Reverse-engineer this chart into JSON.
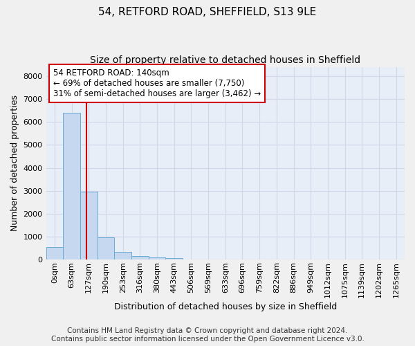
{
  "title1": "54, RETFORD ROAD, SHEFFIELD, S13 9LE",
  "title2": "Size of property relative to detached houses in Sheffield",
  "xlabel": "Distribution of detached houses by size in Sheffield",
  "ylabel": "Number of detached properties",
  "footer_line1": "Contains HM Land Registry data © Crown copyright and database right 2024.",
  "footer_line2": "Contains public sector information licensed under the Open Government Licence v3.0.",
  "bar_labels": [
    "0sqm",
    "63sqm",
    "127sqm",
    "190sqm",
    "253sqm",
    "316sqm",
    "380sqm",
    "443sqm",
    "506sqm",
    "569sqm",
    "633sqm",
    "696sqm",
    "759sqm",
    "822sqm",
    "886sqm",
    "949sqm",
    "1012sqm",
    "1075sqm",
    "1139sqm",
    "1202sqm",
    "1265sqm"
  ],
  "bar_values": [
    550,
    6400,
    2950,
    970,
    340,
    160,
    95,
    65,
    0,
    0,
    0,
    0,
    0,
    0,
    0,
    0,
    0,
    0,
    0,
    0,
    0
  ],
  "bar_color": "#c5d8ef",
  "bar_edge_color": "#6aaad4",
  "annotation_box_text": "54 RETFORD ROAD: 140sqm\n← 69% of detached houses are smaller (7,750)\n31% of semi-detached houses are larger (3,462) →",
  "vline_x": 1.85,
  "vline_color": "#cc0000",
  "box_edge_color": "#cc0000",
  "ylim": [
    0,
    8400
  ],
  "yticks": [
    0,
    1000,
    2000,
    3000,
    4000,
    5000,
    6000,
    7000,
    8000
  ],
  "bg_color": "#e8eef8",
  "grid_color": "#d0d8e8",
  "title1_fontsize": 11,
  "title2_fontsize": 10,
  "xlabel_fontsize": 9,
  "ylabel_fontsize": 9,
  "tick_fontsize": 8,
  "footer_fontsize": 7.5,
  "annot_fontsize": 8.5
}
